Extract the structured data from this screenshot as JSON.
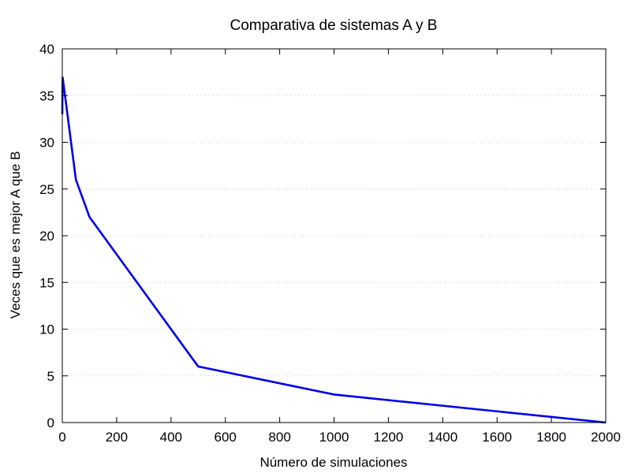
{
  "chart_data": {
    "type": "line",
    "title": "Comparativa de sistemas A y B",
    "xlabel": "Número de simulaciones",
    "ylabel": "Veces que es mejor A que B",
    "xlim": [
      0,
      2000
    ],
    "ylim": [
      0,
      40
    ],
    "xticks": [
      0,
      200,
      400,
      600,
      800,
      1000,
      1200,
      1400,
      1600,
      1800,
      2000
    ],
    "yticks": [
      0,
      5,
      10,
      15,
      20,
      25,
      30,
      35,
      40
    ],
    "grid": "horizontal dotted",
    "series": [
      {
        "color": "#0000e6",
        "x": [
          0,
          1,
          50,
          100,
          500,
          1000,
          2000
        ],
        "y": [
          33,
          37,
          26,
          22,
          6,
          3,
          0
        ]
      }
    ]
  }
}
